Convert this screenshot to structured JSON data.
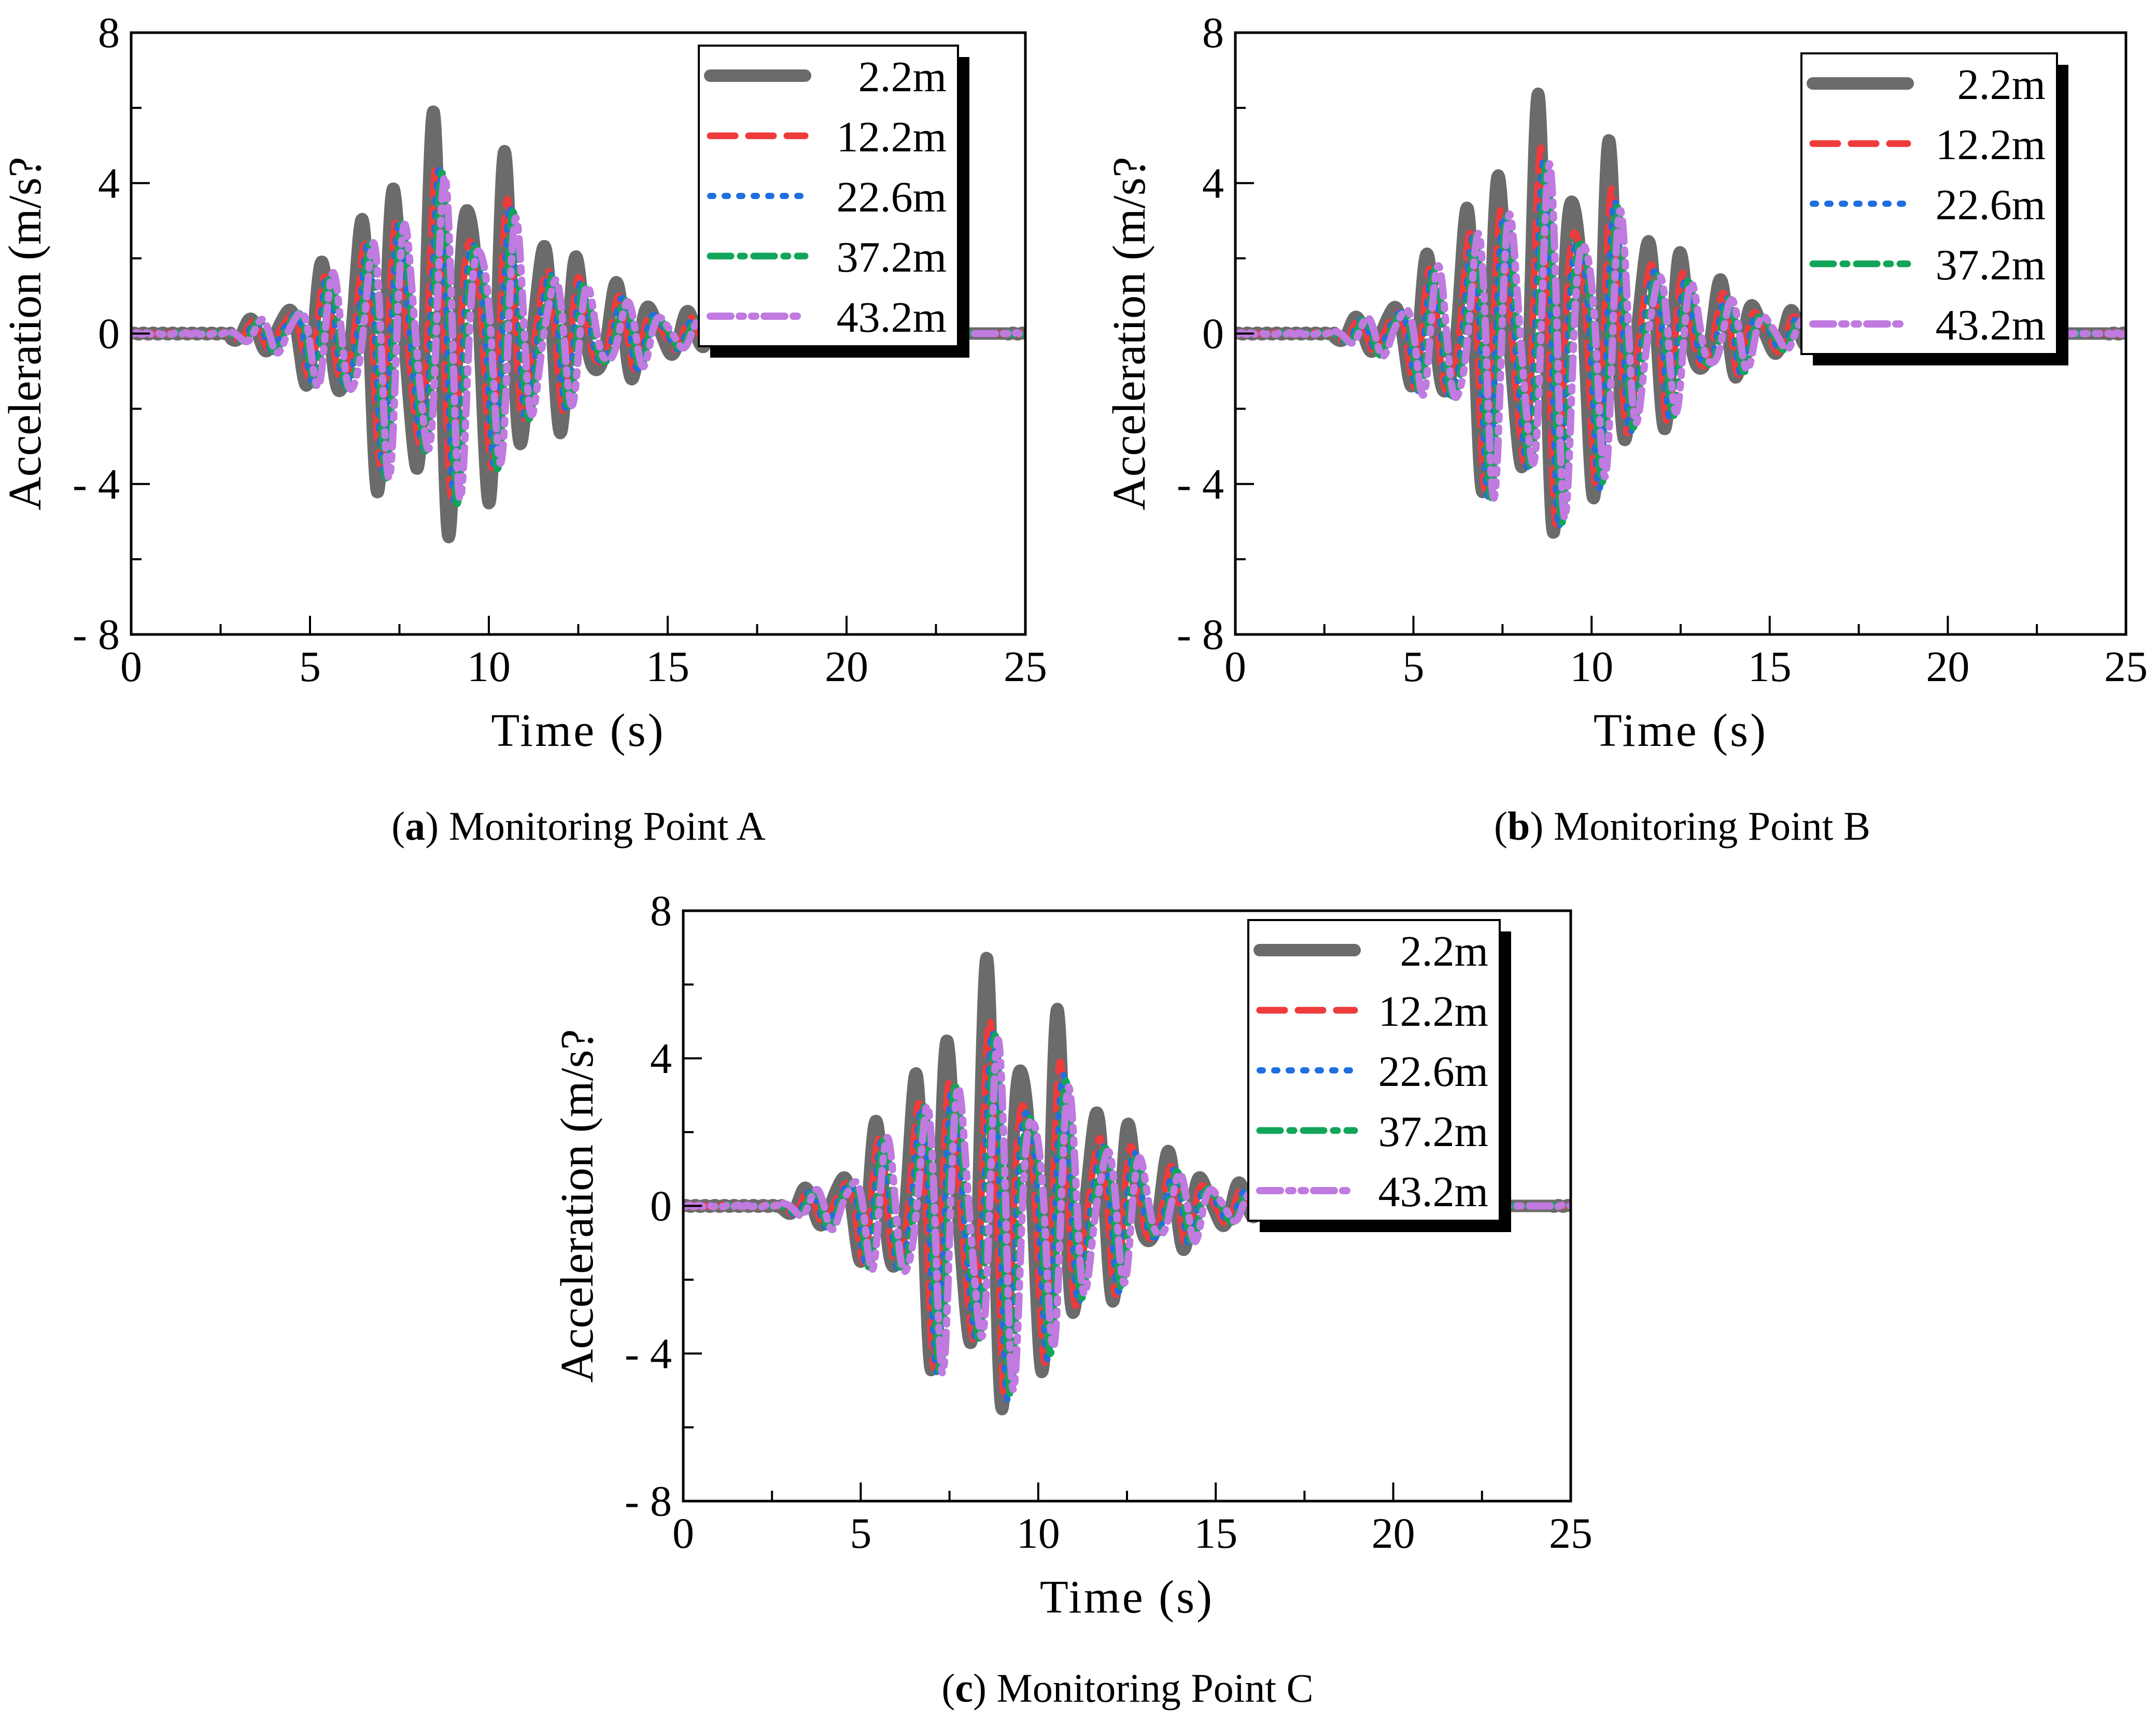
{
  "figure": {
    "panels": [
      {
        "id": "a",
        "caption_letter": "a",
        "caption_text": " Monitoring Point A",
        "open_paren": "(",
        "close_paren": ")"
      },
      {
        "id": "b",
        "caption_letter": "b",
        "caption_text": " Monitoring Point B",
        "open_paren": "(",
        "close_paren": ")"
      },
      {
        "id": "c",
        "caption_letter": "c",
        "caption_text": " Monitoring Point C",
        "open_paren": "(",
        "close_paren": ")"
      }
    ]
  },
  "chart_data": [
    {
      "type": "line",
      "title": "(a) Monitoring Point A",
      "xlabel": "Time (s)",
      "ylabel": "Acceleration (m/s?",
      "xlim": [
        0,
        25
      ],
      "ylim": [
        -8,
        8
      ],
      "xticks": [
        "0",
        "5",
        "10",
        "15",
        "20",
        "25"
      ],
      "yticks": [
        "8",
        "4",
        "0",
        "- 4",
        "- 8"
      ],
      "legend_position": "top-right",
      "series": [
        {
          "name": "2.2m",
          "color": "#6b6b6b",
          "style": "solid",
          "peak_max": 5.3,
          "peak_min": -5.1
        },
        {
          "name": "12.2m",
          "color": "#ee3b3b",
          "style": "dashed",
          "peak_max": 4.0,
          "peak_min": -4.1
        },
        {
          "name": "22.6m",
          "color": "#1f6fe0",
          "style": "dotted",
          "peak_max": 3.9,
          "peak_min": -4.2
        },
        {
          "name": "37.2m",
          "color": "#12a55a",
          "style": "dashdot",
          "peak_max": 3.8,
          "peak_min": -4.3
        },
        {
          "name": "43.2m",
          "color": "#c07ae0",
          "style": "dashdotdot",
          "peak_max": 3.7,
          "peak_min": -4.2
        }
      ]
    },
    {
      "type": "line",
      "title": "(b) Monitoring Point B",
      "xlabel": "Time (s)",
      "ylabel": "Acceleration (m/s?",
      "xlim": [
        0,
        25
      ],
      "ylim": [
        -8,
        8
      ],
      "xticks": [
        "0",
        "5",
        "10",
        "15",
        "20",
        "25"
      ],
      "yticks": [
        "8",
        "4",
        "0",
        "- 4",
        "- 8"
      ],
      "legend_position": "top-right",
      "series": [
        {
          "name": "2.2m",
          "color": "#6b6b6b",
          "style": "solid",
          "peak_max": 5.7,
          "peak_min": -5.0
        },
        {
          "name": "12.2m",
          "color": "#ee3b3b",
          "style": "dashed",
          "peak_max": 4.4,
          "peak_min": -4.8
        },
        {
          "name": "22.6m",
          "color": "#1f6fe0",
          "style": "dotted",
          "peak_max": 4.1,
          "peak_min": -4.9
        },
        {
          "name": "37.2m",
          "color": "#12a55a",
          "style": "dashdot",
          "peak_max": 4.0,
          "peak_min": -4.8
        },
        {
          "name": "43.2m",
          "color": "#c07ae0",
          "style": "dashdotdot",
          "peak_max": 4.0,
          "peak_min": -4.7
        }
      ]
    },
    {
      "type": "line",
      "title": "(c) Monitoring Point C",
      "xlabel": "Time (s)",
      "ylabel": "Acceleration (m/s?",
      "xlim": [
        0,
        25
      ],
      "ylim": [
        -8,
        8
      ],
      "xticks": [
        "0",
        "5",
        "10",
        "15",
        "20",
        "25"
      ],
      "yticks": [
        "8",
        "4",
        "0",
        "- 4",
        "- 8"
      ],
      "legend_position": "top-right",
      "series": [
        {
          "name": "2.2m",
          "color": "#6b6b6b",
          "style": "solid",
          "peak_max": 6.0,
          "peak_min": -5.2
        },
        {
          "name": "12.2m",
          "color": "#ee3b3b",
          "style": "dashed",
          "peak_max": 4.5,
          "peak_min": -5.0
        },
        {
          "name": "22.6m",
          "color": "#1f6fe0",
          "style": "dotted",
          "peak_max": 4.2,
          "peak_min": -5.0
        },
        {
          "name": "37.2m",
          "color": "#12a55a",
          "style": "dashdot",
          "peak_max": 4.1,
          "peak_min": -4.9
        },
        {
          "name": "43.2m",
          "color": "#c07ae0",
          "style": "dashdotdot",
          "peak_max": 4.0,
          "peak_min": -4.8
        }
      ]
    }
  ]
}
